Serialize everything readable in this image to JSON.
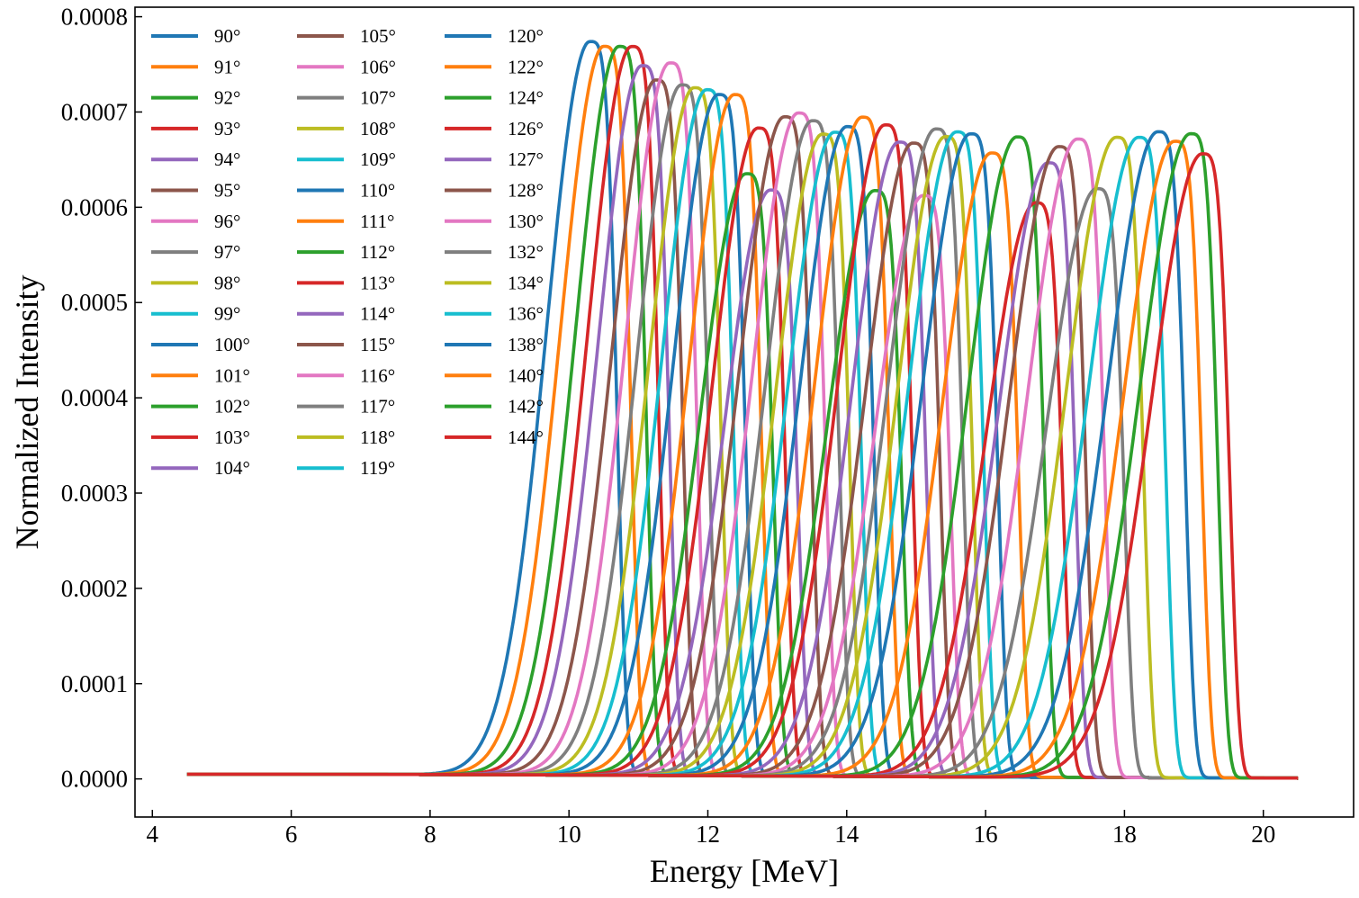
{
  "chart_data": {
    "type": "line",
    "title": "",
    "xlabel": "Energy [MeV]",
    "ylabel": "Normalized Intensity",
    "xlim": [
      3.75,
      21.3
    ],
    "ylim": [
      -4e-05,
      0.00081
    ],
    "xticks": [
      4,
      6,
      8,
      10,
      12,
      14,
      16,
      18,
      20
    ],
    "xtick_labels": [
      "4",
      "6",
      "8",
      "10",
      "12",
      "14",
      "16",
      "18",
      "20"
    ],
    "yticks": [
      0,
      0.0001,
      0.0002,
      0.0003,
      0.0004,
      0.0005,
      0.0006,
      0.0007,
      0.0008
    ],
    "ytick_labels": [
      "0.0000",
      "0.0001",
      "0.0002",
      "0.0003",
      "0.0004",
      "0.0005",
      "0.0006",
      "0.0007",
      "0.0008"
    ],
    "x_range_of_curves": [
      4.5,
      20.5
    ],
    "grid": false,
    "legend": {
      "location": "top-left",
      "columns": 3
    },
    "palette": [
      "#1f77b4",
      "#ff7f0e",
      "#2ca02c",
      "#d62728",
      "#9467bd",
      "#8c564b",
      "#e377c2",
      "#7f7f7f",
      "#bcbd22",
      "#17becf"
    ],
    "series": [
      {
        "name": "90°",
        "peak_energy": 10.3,
        "peak_intensity": 0.00077
      },
      {
        "name": "91°",
        "peak_energy": 10.5,
        "peak_intensity": 0.000765
      },
      {
        "name": "92°",
        "peak_energy": 10.72,
        "peak_intensity": 0.000765
      },
      {
        "name": "93°",
        "peak_energy": 10.9,
        "peak_intensity": 0.000765
      },
      {
        "name": "94°",
        "peak_energy": 11.05,
        "peak_intensity": 0.000745
      },
      {
        "name": "95°",
        "peak_energy": 11.25,
        "peak_intensity": 0.00073
      },
      {
        "name": "96°",
        "peak_energy": 11.45,
        "peak_intensity": 0.000748
      },
      {
        "name": "97°",
        "peak_energy": 11.62,
        "peak_intensity": 0.000725
      },
      {
        "name": "98°",
        "peak_energy": 11.8,
        "peak_intensity": 0.000722
      },
      {
        "name": "99°",
        "peak_energy": 11.98,
        "peak_intensity": 0.00072
      },
      {
        "name": "100°",
        "peak_energy": 12.15,
        "peak_intensity": 0.000715
      },
      {
        "name": "101°",
        "peak_energy": 12.38,
        "peak_intensity": 0.000715
      },
      {
        "name": "102°",
        "peak_energy": 12.55,
        "peak_intensity": 0.000632
      },
      {
        "name": "103°",
        "peak_energy": 12.72,
        "peak_intensity": 0.00068
      },
      {
        "name": "104°",
        "peak_energy": 12.9,
        "peak_intensity": 0.000615
      },
      {
        "name": "105°",
        "peak_energy": 13.1,
        "peak_intensity": 0.000692
      },
      {
        "name": "106°",
        "peak_energy": 13.3,
        "peak_intensity": 0.000696
      },
      {
        "name": "107°",
        "peak_energy": 13.5,
        "peak_intensity": 0.000688
      },
      {
        "name": "108°",
        "peak_energy": 13.65,
        "peak_intensity": 0.000674
      },
      {
        "name": "109°",
        "peak_energy": 13.82,
        "peak_intensity": 0.000676
      },
      {
        "name": "110°",
        "peak_energy": 14.0,
        "peak_intensity": 0.000682
      },
      {
        "name": "111°",
        "peak_energy": 14.22,
        "peak_intensity": 0.000692
      },
      {
        "name": "112°",
        "peak_energy": 14.4,
        "peak_intensity": 0.000615
      },
      {
        "name": "113°",
        "peak_energy": 14.55,
        "peak_intensity": 0.000684
      },
      {
        "name": "114°",
        "peak_energy": 14.75,
        "peak_intensity": 0.000666
      },
      {
        "name": "115°",
        "peak_energy": 14.95,
        "peak_intensity": 0.000665
      },
      {
        "name": "116°",
        "peak_energy": 15.1,
        "peak_intensity": 0.00061
      },
      {
        "name": "117°",
        "peak_energy": 15.28,
        "peak_intensity": 0.00068
      },
      {
        "name": "118°",
        "peak_energy": 15.42,
        "peak_intensity": 0.000672
      },
      {
        "name": "119°",
        "peak_energy": 15.58,
        "peak_intensity": 0.000677
      },
      {
        "name": "120°",
        "peak_energy": 15.78,
        "peak_intensity": 0.000675
      },
      {
        "name": "122°",
        "peak_energy": 16.08,
        "peak_intensity": 0.000655
      },
      {
        "name": "124°",
        "peak_energy": 16.45,
        "peak_intensity": 0.000672
      },
      {
        "name": "126°",
        "peak_energy": 16.72,
        "peak_intensity": 0.000603
      },
      {
        "name": "127°",
        "peak_energy": 16.9,
        "peak_intensity": 0.000645
      },
      {
        "name": "128°",
        "peak_energy": 17.05,
        "peak_intensity": 0.000662
      },
      {
        "name": "130°",
        "peak_energy": 17.32,
        "peak_intensity": 0.00067
      },
      {
        "name": "132°",
        "peak_energy": 17.6,
        "peak_intensity": 0.000618
      },
      {
        "name": "134°",
        "peak_energy": 17.88,
        "peak_intensity": 0.000672
      },
      {
        "name": "136°",
        "peak_energy": 18.2,
        "peak_intensity": 0.000672
      },
      {
        "name": "138°",
        "peak_energy": 18.48,
        "peak_intensity": 0.000678
      },
      {
        "name": "140°",
        "peak_energy": 18.72,
        "peak_intensity": 0.000668
      },
      {
        "name": "142°",
        "peak_energy": 18.95,
        "peak_intensity": 0.000676
      },
      {
        "name": "144°",
        "peak_energy": 19.12,
        "peak_intensity": 0.000655
      }
    ]
  }
}
